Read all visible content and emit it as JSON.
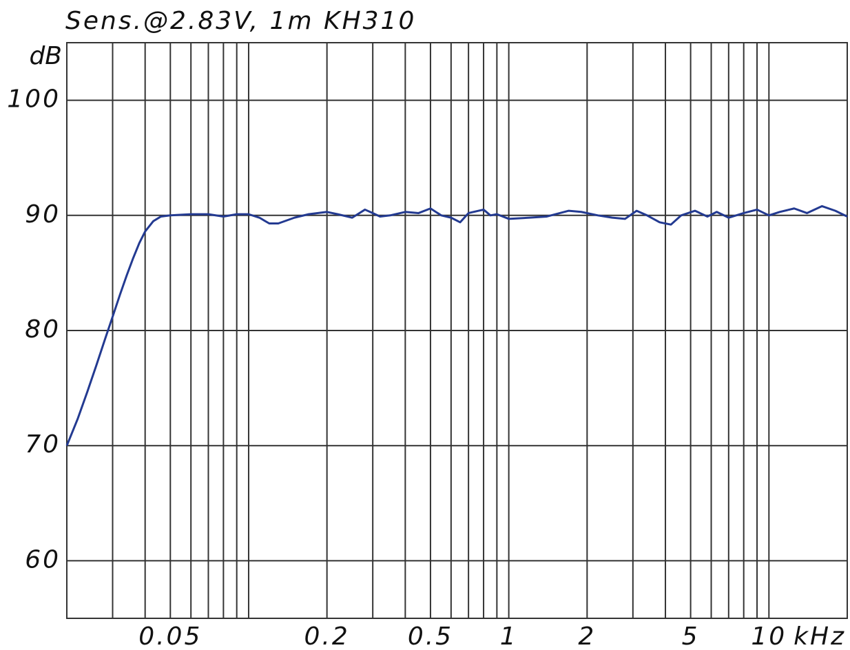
{
  "chart_data": {
    "type": "line",
    "title": "Sens.@2.83V, 1m KH310",
    "x_label": "kHz",
    "y_label": "dB",
    "xscale": "log",
    "grid": true,
    "xlim": [
      0.02,
      20
    ],
    "ylim": [
      55,
      105
    ],
    "xticks": [
      0.05,
      0.2,
      0.5,
      1,
      2,
      5,
      10
    ],
    "xgrid_minor": [
      0.03,
      0.04,
      0.06,
      0.07,
      0.08,
      0.09,
      0.1,
      0.3,
      0.4,
      0.6,
      0.7,
      0.8,
      0.9,
      3,
      4,
      6,
      7,
      8,
      9,
      20
    ],
    "yticks": [
      60,
      70,
      80,
      90,
      100
    ],
    "series": [
      {
        "color": "#233a91",
        "x": [
          0.02,
          0.022,
          0.024,
          0.026,
          0.028,
          0.03,
          0.032,
          0.034,
          0.036,
          0.038,
          0.04,
          0.043,
          0.046,
          0.05,
          0.06,
          0.07,
          0.08,
          0.09,
          0.1,
          0.11,
          0.12,
          0.13,
          0.15,
          0.17,
          0.2,
          0.22,
          0.25,
          0.28,
          0.3,
          0.32,
          0.35,
          0.4,
          0.45,
          0.5,
          0.55,
          0.6,
          0.65,
          0.7,
          0.8,
          0.85,
          0.9,
          1.0,
          1.2,
          1.4,
          1.7,
          1.9,
          2.2,
          2.5,
          2.8,
          3.1,
          3.4,
          3.8,
          4.2,
          4.6,
          5.2,
          5.8,
          6.3,
          7,
          8,
          9,
          10,
          11,
          12.5,
          14,
          16,
          18,
          20
        ],
        "values": [
          70,
          72.3,
          74.7,
          77,
          79.2,
          81.2,
          83.1,
          84.8,
          86.3,
          87.6,
          88.6,
          89.5,
          89.9,
          90.0,
          90.1,
          90.1,
          89.9,
          90.1,
          90.1,
          89.8,
          89.3,
          89.3,
          89.8,
          90.1,
          90.3,
          90.1,
          89.8,
          90.5,
          90.2,
          89.9,
          90.0,
          90.3,
          90.2,
          90.6,
          90.0,
          89.8,
          89.4,
          90.2,
          90.5,
          90.0,
          90.1,
          89.7,
          89.8,
          89.9,
          90.4,
          90.3,
          90.0,
          89.8,
          89.7,
          90.4,
          90.0,
          89.4,
          89.2,
          90.0,
          90.4,
          89.9,
          90.3,
          89.8,
          90.2,
          90.5,
          90.0,
          90.3,
          90.6,
          90.2,
          90.8,
          90.4,
          89.9
        ]
      }
    ]
  }
}
